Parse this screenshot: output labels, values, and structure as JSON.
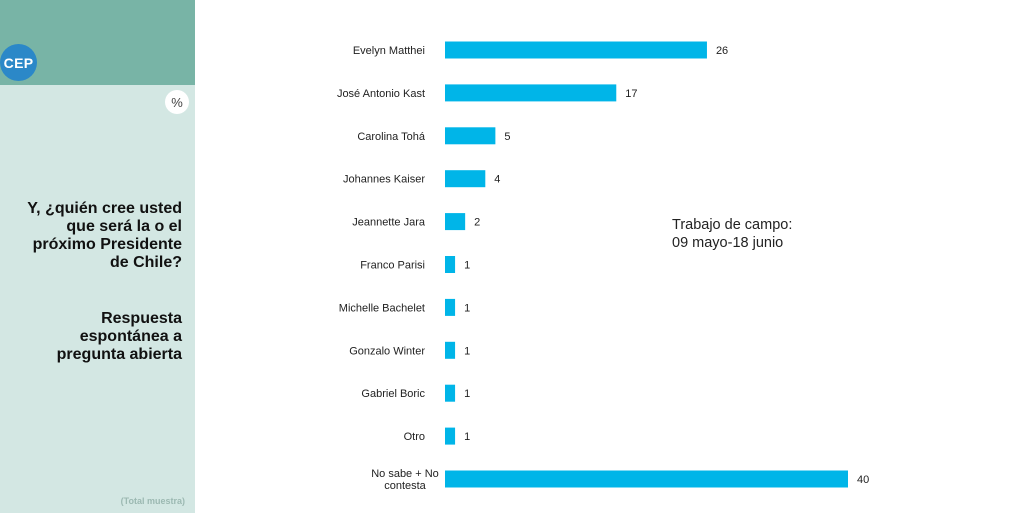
{
  "sidebar": {
    "logo_text": "CEP",
    "unit_label": "%",
    "question": "Y, ¿quién cree usted que será la o el próximo Presidente de Chile?",
    "question_sub": "Respuesta espontánea a pregunta abierta",
    "footnote": "(Total muestra)"
  },
  "fieldwork": {
    "line1": "Trabajo de campo:",
    "line2": "09 mayo-18 junio"
  },
  "colors": {
    "bar": "#00b5e8",
    "sidebar_top": "#78b4a6",
    "sidebar": "#d3e7e3",
    "logo": "#2b88c8"
  },
  "chart_data": {
    "type": "bar",
    "orientation": "horizontal",
    "categories": [
      [
        "Evelyn Matthei"
      ],
      [
        "José Antonio Kast"
      ],
      [
        "Carolina Tohá"
      ],
      [
        "Johannes Kaiser"
      ],
      [
        "Jeannette Jara"
      ],
      [
        "Franco Parisi"
      ],
      [
        "Michelle Bachelet"
      ],
      [
        "Gonzalo Winter"
      ],
      [
        "Gabriel Boric"
      ],
      [
        "Otro"
      ],
      [
        "No sabe + No",
        "contesta"
      ]
    ],
    "values": [
      26,
      17,
      5,
      4,
      2,
      1,
      1,
      1,
      1,
      1,
      40
    ],
    "unit": "%",
    "xlim": [
      0,
      40
    ],
    "grid": false
  }
}
